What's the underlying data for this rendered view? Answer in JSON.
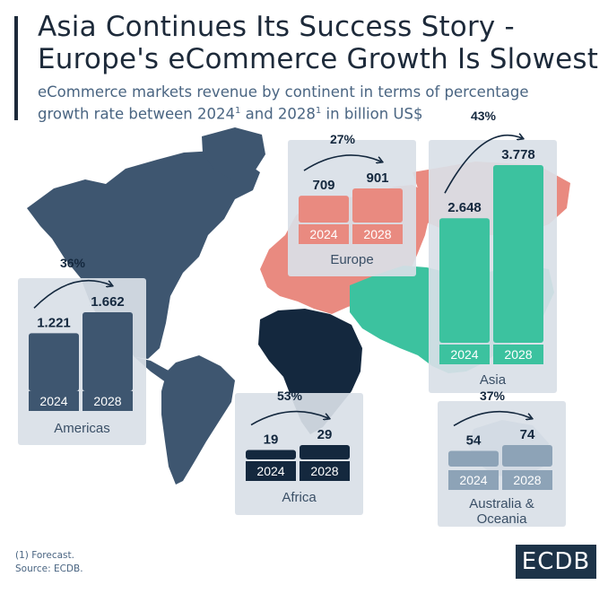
{
  "title_line1": "Asia Continues Its Success Story -",
  "title_line2": "Europe's eCommerce Growth Is Slowest",
  "subtitle_line1": "eCommerce markets revenue by continent in terms of percentage",
  "subtitle_line2_a": "growth rate between 2024",
  "subtitle_line2_b": " and 2028",
  "subtitle_line2_c": " in billion US$",
  "footnote_mark": "1",
  "footnote_line1": "(1) Forecast.",
  "footnote_line2": "Source: ECDB.",
  "logo": "ECDB",
  "colors": {
    "americas": "#3e5670",
    "europe": "#e98a80",
    "asia": "#3cc29f",
    "africa": "#14283e",
    "oceania": "#8da3b7",
    "panel": "#d9e0e7"
  },
  "chart_data": [
    {
      "type": "bar",
      "region": "Americas",
      "categories": [
        "2024",
        "2028"
      ],
      "values": [
        1221,
        1662
      ],
      "value_labels": [
        "1.221",
        "1.662"
      ],
      "growth": "36%"
    },
    {
      "type": "bar",
      "region": "Europe",
      "categories": [
        "2024",
        "2028"
      ],
      "values": [
        709,
        901
      ],
      "value_labels": [
        "709",
        "901"
      ],
      "growth": "27%"
    },
    {
      "type": "bar",
      "region": "Asia",
      "categories": [
        "2024",
        "2028"
      ],
      "values": [
        2648,
        3778
      ],
      "value_labels": [
        "2.648",
        "3.778"
      ],
      "growth": "43%"
    },
    {
      "type": "bar",
      "region": "Africa",
      "categories": [
        "2024",
        "2028"
      ],
      "values": [
        19,
        29
      ],
      "value_labels": [
        "19",
        "29"
      ],
      "growth": "53%"
    },
    {
      "type": "bar",
      "region": "Australia & Oceania",
      "region_lines": [
        "Australia &",
        "Oceania"
      ],
      "categories": [
        "2024",
        "2028"
      ],
      "values": [
        54,
        74
      ],
      "value_labels": [
        "54",
        "74"
      ],
      "growth": "37%"
    }
  ]
}
